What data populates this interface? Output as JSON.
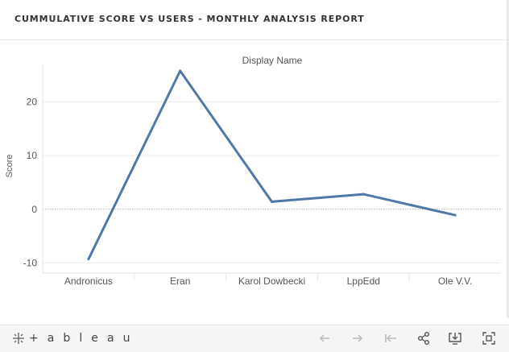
{
  "header": {
    "title": "CUMMULATIVE SCORE VS USERS - MONTHLY ANALYSIS REPORT"
  },
  "chart_data": {
    "type": "line",
    "title": "Display Name",
    "xlabel": "",
    "ylabel": "Score",
    "categories": [
      "Andronicus",
      "Eran",
      "Karol Dowbecki",
      "LppEdd",
      "Ole V.V."
    ],
    "series": [
      {
        "values": [
          -9.3,
          25.8,
          1.4,
          2.8,
          -1.1
        ],
        "color": "#4e79a7"
      }
    ],
    "ylim": [
      -11,
      27
    ],
    "yticks": [
      -10,
      0,
      10,
      20
    ],
    "grid": true,
    "legend": "none"
  },
  "toolbar": {
    "logo_text": "+ a b l e a u",
    "icons": [
      "undo-icon",
      "redo-icon",
      "revert-icon",
      "share-icon",
      "download-icon",
      "fullscreen-icon"
    ]
  }
}
